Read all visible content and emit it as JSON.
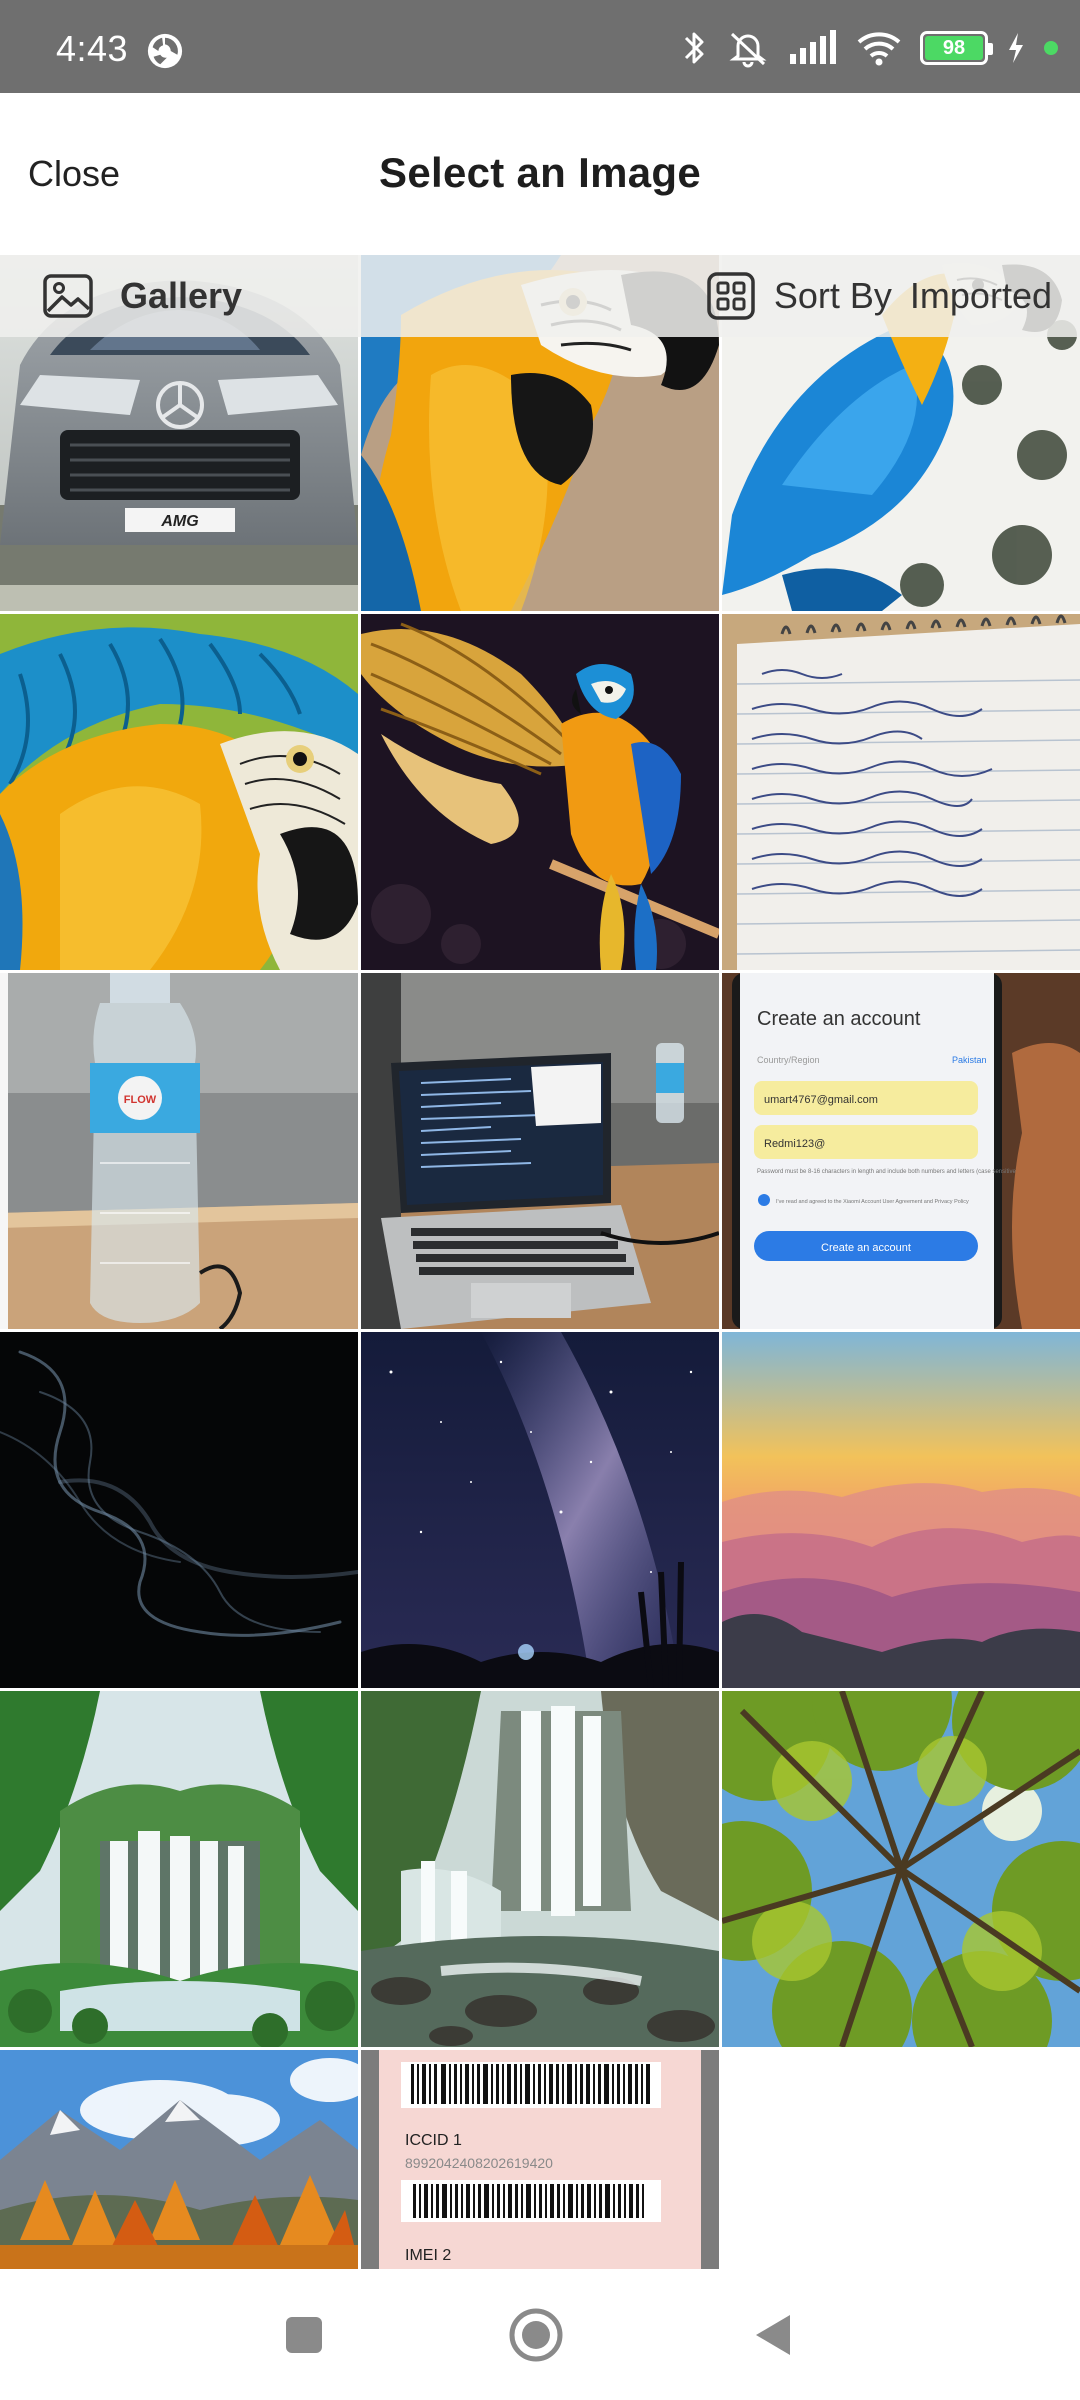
{
  "status_bar": {
    "time": "4:43",
    "battery_level": "98"
  },
  "header": {
    "close_label": "Close",
    "title": "Select an Image"
  },
  "toolbar": {
    "gallery_label": "Gallery",
    "sort_label": "Sort By",
    "sort_value": "Imported"
  },
  "images": [
    {
      "name": "car-photo"
    },
    {
      "name": "parrot-closeup-photo"
    },
    {
      "name": "blue-parrot-photo"
    },
    {
      "name": "parrot-feathers-photo"
    },
    {
      "name": "parrot-wings-photo"
    },
    {
      "name": "notebook-photo"
    },
    {
      "name": "water-bottle-photo"
    },
    {
      "name": "laptop-photo"
    },
    {
      "name": "phone-screen-photo"
    },
    {
      "name": "smoke-photo"
    },
    {
      "name": "milky-way-photo"
    },
    {
      "name": "sunset-mountains-photo"
    },
    {
      "name": "waterfall-forest-photo"
    },
    {
      "name": "waterfall-rocks-photo"
    },
    {
      "name": "tree-canopy-photo"
    },
    {
      "name": "autumn-mountains-photo"
    },
    {
      "name": "sim-card-label-photo"
    }
  ],
  "photo_text": {
    "phone_title": "Create an account",
    "phone_region_label": "Country/Region",
    "phone_region_value": "Pakistan",
    "phone_email": "umart4767@gmail.com",
    "phone_password": "Redmi123@",
    "phone_hint": "Password must be 8-16 characters in length and include both numbers and letters (case sensitive).",
    "phone_agree": "I've read and agreed to the Xiaomi Account User Agreement and Privacy Policy",
    "phone_button": "Create an account",
    "car_plate": "AMG",
    "sim_iccid_label": "ICCID 1",
    "sim_iccid_value": "8992042408202619420",
    "sim_imei_label": "IMEI 2"
  },
  "colors": {
    "status_bar_bg": "#6f6f6f",
    "battery_fill": "#4cd964",
    "title_text": "#1e1e1e"
  }
}
